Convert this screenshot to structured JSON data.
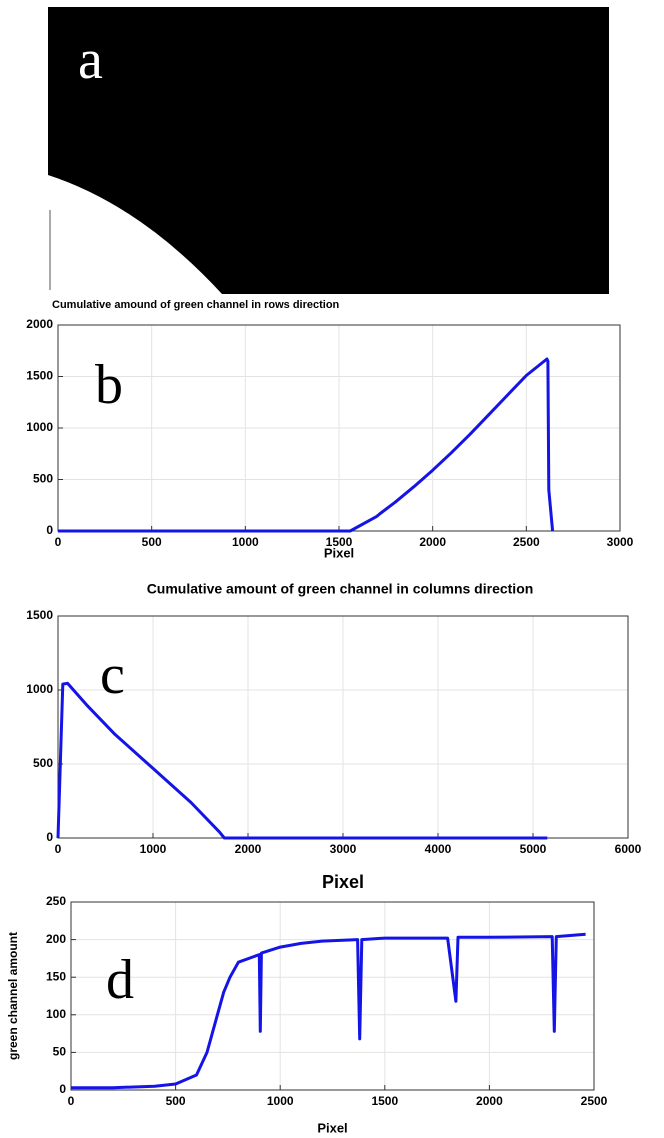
{
  "panel_a": {
    "label": "a"
  },
  "chart_data": [
    {
      "type": "line",
      "panel_label": "b",
      "title": "Cumulative amound of green channel in rows direction",
      "x_label": "Pixel",
      "color": "#1414e6",
      "grid": true,
      "xlim": [
        0,
        3000
      ],
      "ylim": [
        0,
        2000
      ],
      "xticks": [
        0,
        500,
        1000,
        1500,
        2000,
        2500,
        3000
      ],
      "yticks": [
        0,
        500,
        1000,
        1500,
        2000
      ],
      "x": [
        0,
        1560,
        1700,
        1720,
        1800,
        1900,
        2000,
        2100,
        2200,
        2300,
        2400,
        2500,
        2610,
        2615,
        2620,
        2640
      ],
      "values": [
        0,
        0,
        140,
        170,
        280,
        430,
        590,
        760,
        940,
        1130,
        1320,
        1510,
        1670,
        1650,
        400,
        0
      ]
    },
    {
      "type": "line",
      "panel_label": "c",
      "title": "Cumulative amount of green channel in columns direction",
      "x_label": "Pixel",
      "color": "#1414e6",
      "grid": true,
      "xlim": [
        0,
        6000
      ],
      "ylim": [
        0,
        1500
      ],
      "xticks": [
        0,
        1000,
        2000,
        3000,
        4000,
        5000,
        6000
      ],
      "yticks": [
        0,
        500,
        1000,
        1500
      ],
      "x": [
        0,
        50,
        100,
        300,
        600,
        1000,
        1400,
        1700,
        1750,
        5150
      ],
      "values": [
        0,
        1040,
        1045,
        900,
        700,
        470,
        240,
        40,
        0,
        0
      ]
    },
    {
      "type": "line",
      "panel_label": "d",
      "y_label": "green channel amount",
      "x_label": "Pixel",
      "color": "#1414e6",
      "grid": true,
      "xlim": [
        0,
        2500
      ],
      "ylim": [
        0,
        250
      ],
      "xticks": [
        0,
        500,
        1000,
        1500,
        2000,
        2500
      ],
      "yticks": [
        0,
        50,
        100,
        150,
        200,
        250
      ],
      "x": [
        0,
        200,
        400,
        500,
        600,
        650,
        700,
        730,
        760,
        800,
        900,
        905,
        910,
        1000,
        1100,
        1200,
        1370,
        1380,
        1390,
        1500,
        1800,
        1840,
        1850,
        2000,
        2300,
        2310,
        2320,
        2460
      ],
      "values": [
        3,
        3,
        5,
        8,
        20,
        50,
        100,
        130,
        150,
        170,
        180,
        78,
        182,
        190,
        195,
        198,
        200,
        68,
        200,
        202,
        202,
        118,
        203,
        203,
        204,
        78,
        204,
        207
      ]
    }
  ]
}
